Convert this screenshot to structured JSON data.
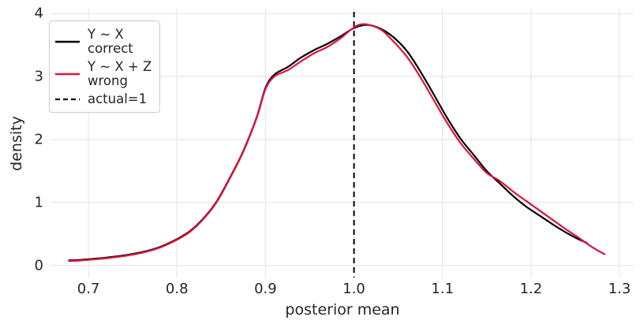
{
  "chart_data": {
    "type": "line",
    "subtype": "kde-density",
    "title": "",
    "xlabel": "posterior mean",
    "ylabel": "density",
    "xlim": [
      0.658,
      1.316
    ],
    "ylim": [
      -0.19,
      4.09
    ],
    "grid": true,
    "grid_color": "#e7e7e7",
    "background_color": "#ffffff",
    "text_color": "#262626",
    "legend_position": "upper left",
    "x_ticks": [
      {
        "value": 0.7,
        "label": "0.7"
      },
      {
        "value": 0.8,
        "label": "0.8"
      },
      {
        "value": 0.9,
        "label": "0.9"
      },
      {
        "value": 1.0,
        "label": "1.0"
      },
      {
        "value": 1.1,
        "label": "1.1"
      },
      {
        "value": 1.2,
        "label": "1.2"
      },
      {
        "value": 1.3,
        "label": "1.3"
      }
    ],
    "y_ticks": [
      {
        "value": 0,
        "label": "0"
      },
      {
        "value": 1,
        "label": "1"
      },
      {
        "value": 2,
        "label": "2"
      },
      {
        "value": 3,
        "label": "3"
      },
      {
        "value": 4,
        "label": "4"
      }
    ],
    "vline": {
      "x": 1.0,
      "style": "dashed",
      "color": "#000000",
      "legend_label": "actual=1"
    },
    "series": [
      {
        "name": "Y ~ X correct",
        "legend_line1": "Y ~ X",
        "legend_line2": "correct",
        "color": "#000000",
        "style": "solid",
        "points": [
          [
            0.678,
            0.08
          ],
          [
            0.7,
            0.1
          ],
          [
            0.72,
            0.125
          ],
          [
            0.74,
            0.16
          ],
          [
            0.76,
            0.21
          ],
          [
            0.78,
            0.29
          ],
          [
            0.8,
            0.42
          ],
          [
            0.815,
            0.55
          ],
          [
            0.83,
            0.75
          ],
          [
            0.845,
            1.02
          ],
          [
            0.86,
            1.4
          ],
          [
            0.875,
            1.82
          ],
          [
            0.89,
            2.35
          ],
          [
            0.9,
            2.82
          ],
          [
            0.91,
            3.03
          ],
          [
            0.925,
            3.15
          ],
          [
            0.94,
            3.3
          ],
          [
            0.955,
            3.42
          ],
          [
            0.97,
            3.52
          ],
          [
            0.985,
            3.64
          ],
          [
            1.0,
            3.77
          ],
          [
            1.015,
            3.82
          ],
          [
            1.03,
            3.76
          ],
          [
            1.045,
            3.62
          ],
          [
            1.06,
            3.4
          ],
          [
            1.075,
            3.08
          ],
          [
            1.09,
            2.72
          ],
          [
            1.105,
            2.35
          ],
          [
            1.12,
            2.02
          ],
          [
            1.135,
            1.76
          ],
          [
            1.15,
            1.5
          ],
          [
            1.165,
            1.3
          ],
          [
            1.18,
            1.1
          ],
          [
            1.195,
            0.93
          ],
          [
            1.21,
            0.79
          ],
          [
            1.225,
            0.65
          ],
          [
            1.24,
            0.52
          ],
          [
            1.252,
            0.43
          ],
          [
            1.263,
            0.36
          ]
        ]
      },
      {
        "name": "Y ~ X + Z wrong",
        "legend_line1": "Y ~ X + Z",
        "legend_line2": "wrong",
        "color": "#DC143C",
        "style": "solid",
        "points": [
          [
            0.678,
            0.07
          ],
          [
            0.7,
            0.09
          ],
          [
            0.72,
            0.115
          ],
          [
            0.74,
            0.15
          ],
          [
            0.76,
            0.2
          ],
          [
            0.78,
            0.28
          ],
          [
            0.8,
            0.41
          ],
          [
            0.815,
            0.54
          ],
          [
            0.83,
            0.74
          ],
          [
            0.845,
            1.01
          ],
          [
            0.86,
            1.39
          ],
          [
            0.875,
            1.81
          ],
          [
            0.89,
            2.34
          ],
          [
            0.9,
            2.8
          ],
          [
            0.91,
            3.0
          ],
          [
            0.925,
            3.1
          ],
          [
            0.94,
            3.24
          ],
          [
            0.955,
            3.37
          ],
          [
            0.97,
            3.47
          ],
          [
            0.985,
            3.61
          ],
          [
            0.998,
            3.76
          ],
          [
            1.008,
            3.83
          ],
          [
            1.02,
            3.81
          ],
          [
            1.032,
            3.73
          ],
          [
            1.045,
            3.55
          ],
          [
            1.06,
            3.31
          ],
          [
            1.075,
            2.99
          ],
          [
            1.09,
            2.63
          ],
          [
            1.105,
            2.27
          ],
          [
            1.12,
            1.95
          ],
          [
            1.135,
            1.7
          ],
          [
            1.15,
            1.47
          ],
          [
            1.165,
            1.34
          ],
          [
            1.18,
            1.17
          ],
          [
            1.195,
            1.02
          ],
          [
            1.21,
            0.87
          ],
          [
            1.225,
            0.72
          ],
          [
            1.24,
            0.57
          ],
          [
            1.253,
            0.45
          ],
          [
            1.265,
            0.33
          ],
          [
            1.274,
            0.25
          ],
          [
            1.283,
            0.18
          ]
        ]
      }
    ]
  }
}
